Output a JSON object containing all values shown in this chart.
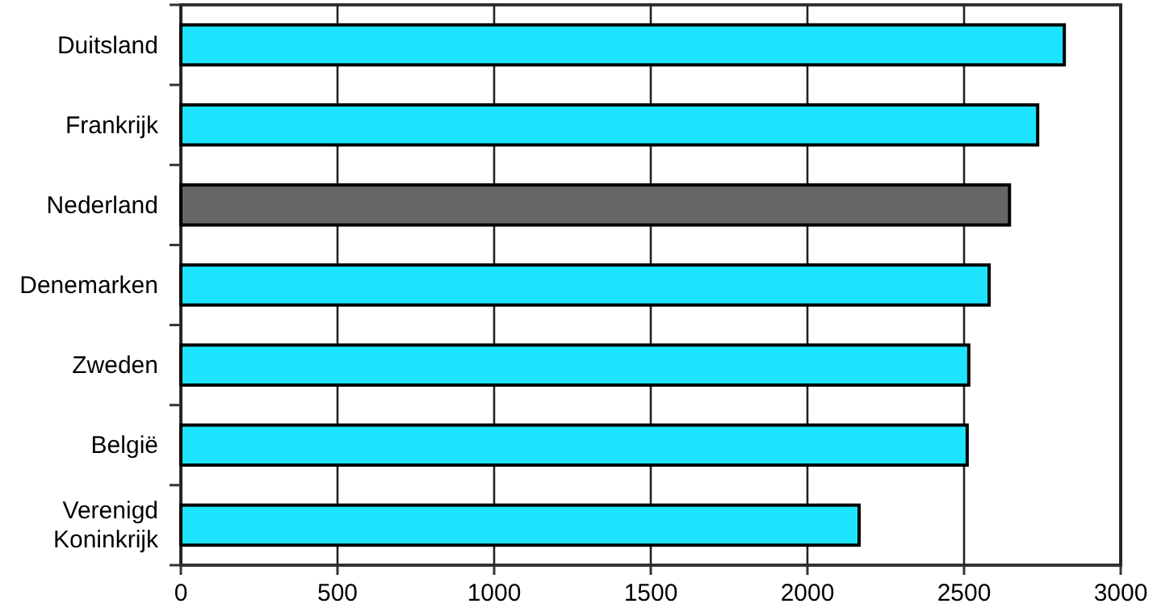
{
  "chart_data": {
    "type": "bar",
    "orientation": "horizontal",
    "categories": [
      "Duitsland",
      "Frankrijk",
      "Nederland",
      "Denemarken",
      "Zweden",
      "België",
      "Verenigd Koninkrijk"
    ],
    "values": [
      2820,
      2735,
      2645,
      2580,
      2515,
      2510,
      2165
    ],
    "colors": [
      "#1ce4fe",
      "#1ce4fe",
      "#666666",
      "#1ce4fe",
      "#1ce4fe",
      "#1ce4fe",
      "#1ce4fe"
    ],
    "xlim": [
      0,
      3000
    ],
    "xticks": [
      0,
      500,
      1000,
      1500,
      2000,
      2500,
      3000
    ],
    "grid": "x"
  }
}
